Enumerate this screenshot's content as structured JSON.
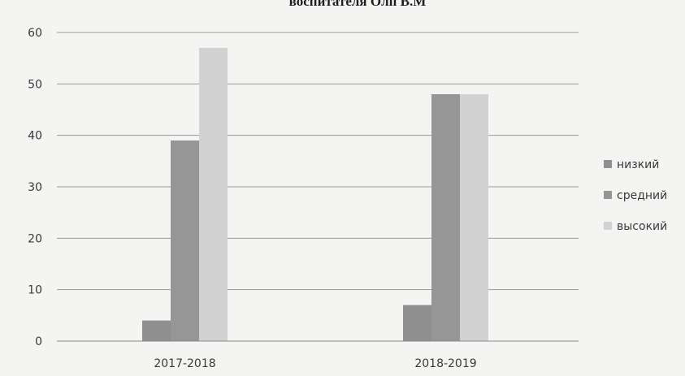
{
  "chart_data": {
    "type": "bar",
    "title": "воспитателя Олп В.М",
    "categories": [
      "2017-2018",
      "2018-2019"
    ],
    "series": [
      {
        "name": "низкий",
        "values": [
          4,
          7
        ]
      },
      {
        "name": "средний",
        "values": [
          39,
          48
        ]
      },
      {
        "name": "высокий",
        "values": [
          57,
          48
        ]
      }
    ],
    "ylim": [
      0,
      60
    ],
    "yticks": [
      0,
      10,
      20,
      30,
      40,
      50,
      60
    ],
    "xlabel": "",
    "ylabel": "",
    "grid": true,
    "legend_position": "right",
    "colors": [
      "#8f8f8f",
      "#969696",
      "#d2d2d2"
    ]
  }
}
